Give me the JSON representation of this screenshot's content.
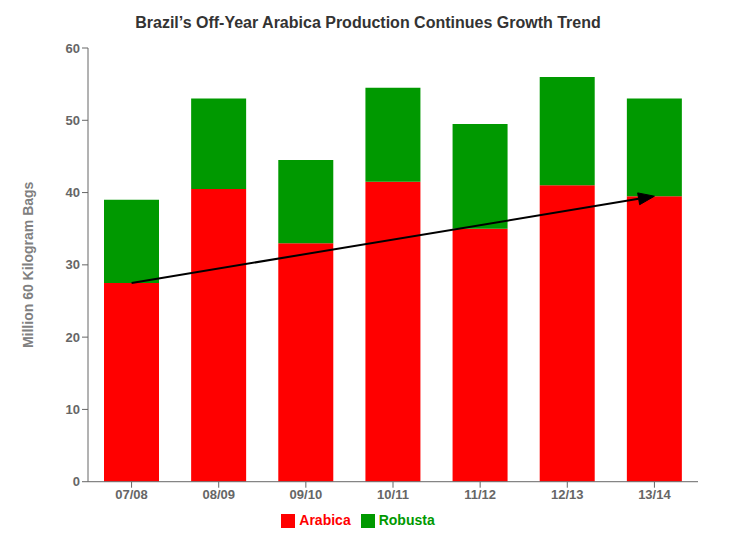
{
  "chart_data": {
    "type": "bar",
    "title": "Brazil’s Off-Year Arabica Production Continues Growth Trend",
    "ylabel": "Million 60 Kilogram Bags",
    "categories": [
      "07/08",
      "08/09",
      "09/10",
      "10/11",
      "11/12",
      "12/13",
      "13/14"
    ],
    "series": [
      {
        "name": "Arabica",
        "color": "#FF0000",
        "values": [
          27.5,
          40.5,
          33.0,
          41.5,
          35.0,
          41.0,
          39.5
        ]
      },
      {
        "name": "Robusta",
        "color": "#009900",
        "values": [
          11.5,
          12.5,
          11.5,
          13.0,
          14.5,
          15.0,
          13.5
        ]
      }
    ],
    "stacked": true,
    "ylim": [
      0,
      60
    ],
    "yticks": [
      0,
      10,
      20,
      30,
      40,
      50,
      60
    ],
    "grid": false,
    "legend": "bottom",
    "trend": {
      "categories": [
        "07/08",
        "13/14"
      ],
      "values": [
        27.5,
        39.5
      ],
      "color": "#000000"
    }
  }
}
